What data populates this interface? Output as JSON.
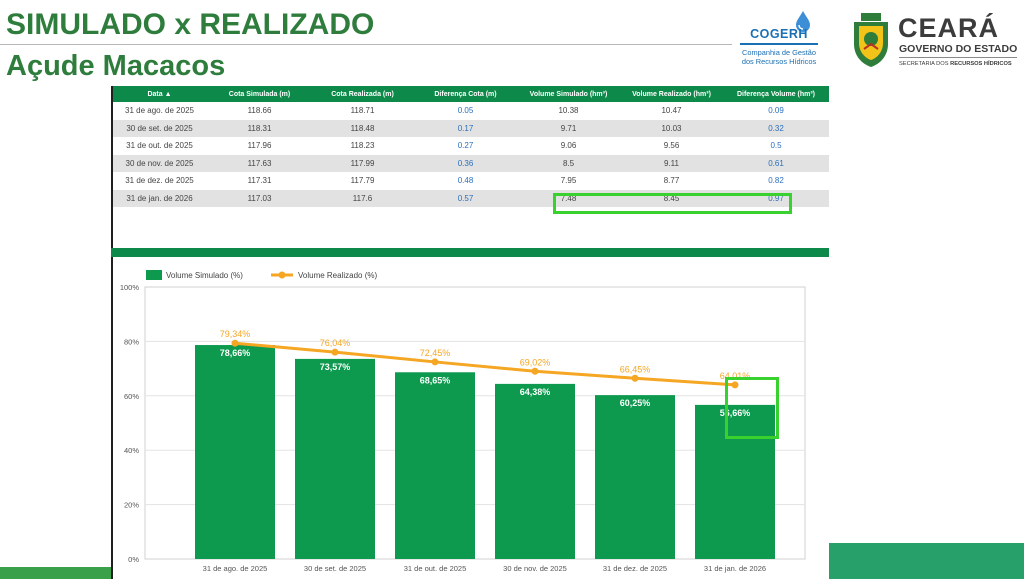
{
  "header": {
    "title": "SIMULADO x REALIZADO",
    "subtitle": "Açude Macacos"
  },
  "logos": {
    "cogerh": {
      "name": "COGERH",
      "line1": "Companhia de Gestão",
      "line2": "dos Recursos Hídricos"
    },
    "ceara": {
      "name": "CEARÁ",
      "line1": "GOVERNO DO ESTADO",
      "line2_a": "SECRETARIA DOS ",
      "line2_b": "RECURSOS HÍDRICOS"
    }
  },
  "table": {
    "columns": [
      "Data ▲",
      "Cota Simulada (m)",
      "Cota Realizada (m)",
      "Diferença Cota (m)",
      "Volume Simulado (hm³)",
      "Volume Realizado (hm³)",
      "Diferença Volume (hm³)"
    ],
    "rows": [
      [
        "31 de ago. de 2025",
        "118.66",
        "118.71",
        "0.05",
        "10.38",
        "10.47",
        "0.09"
      ],
      [
        "30 de set. de 2025",
        "118.31",
        "118.48",
        "0.17",
        "9.71",
        "10.03",
        "0.32"
      ],
      [
        "31 de out. de 2025",
        "117.96",
        "118.23",
        "0.27",
        "9.06",
        "9.56",
        "0.5"
      ],
      [
        "30 de nov. de 2025",
        "117.63",
        "117.99",
        "0.36",
        "8.5",
        "9.11",
        "0.61"
      ],
      [
        "31 de dez. de 2025",
        "117.31",
        "117.79",
        "0.48",
        "7.95",
        "8.77",
        "0.82"
      ],
      [
        "31 de jan. de 2026",
        "117.03",
        "117.6",
        "0.57",
        "7.48",
        "8.45",
        "0.97"
      ]
    ]
  },
  "chart_data": {
    "type": "bar",
    "categories": [
      "31 de ago. de 2025",
      "30 de set. de 2025",
      "31 de out. de 2025",
      "30 de nov. de 2025",
      "31 de dez. de 2025",
      "31 de jan. de 2026"
    ],
    "series": [
      {
        "name": "Volume Simulado (%)",
        "type": "bar",
        "values": [
          78.66,
          73.57,
          68.65,
          64.38,
          60.25,
          56.66
        ],
        "labels": [
          "78,66%",
          "73,57%",
          "68,65%",
          "64,38%",
          "60,25%",
          "56,66%"
        ],
        "color": "#0d9a4f"
      },
      {
        "name": "Volume Realizado (%)",
        "type": "line",
        "values": [
          79.34,
          76.04,
          72.45,
          69.02,
          66.45,
          64.01
        ],
        "labels": [
          "79,34%",
          "76,04%",
          "72,45%",
          "69,02%",
          "66,45%",
          "64,01%"
        ],
        "color": "#f5a623"
      }
    ],
    "yticks": [
      "0%",
      "20%",
      "40%",
      "60%",
      "80%",
      "100%"
    ],
    "ylim": [
      0,
      100
    ],
    "grid": true,
    "legend": "top-left"
  },
  "colors": {
    "title_green": "#2e7d3c",
    "header_green": "#0d8a4a",
    "bar_green": "#0d9a4f",
    "line_orange": "#f5a623",
    "diff_blue": "#2a6fbd",
    "highlight": "#39d12e"
  }
}
